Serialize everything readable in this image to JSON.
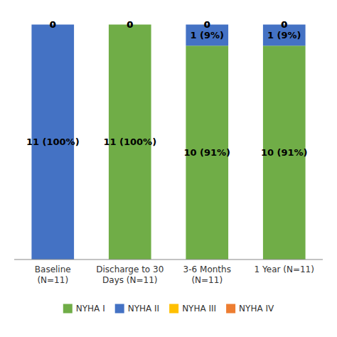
{
  "chart_data": {
    "type": "bar",
    "stacked": true,
    "categories": [
      "Baseline\n(N=11)",
      "Discharge to 30\nDays (N=11)",
      "3-6 Months\n(N=11)",
      "1 Year (N=11)"
    ],
    "series": [
      {
        "name": "NYHA I",
        "color": "#70AD47",
        "values": [
          0,
          100,
          91,
          91
        ],
        "value_labels": [
          null,
          "11 (100%)",
          "10 (91%)",
          "10 (91%)"
        ]
      },
      {
        "name": "NYHA II",
        "color": "#4472C4",
        "values": [
          100,
          0,
          9,
          9
        ],
        "value_labels": [
          "11 (100%)",
          null,
          "1 (9%)",
          "1 (9%)"
        ]
      },
      {
        "name": "NYHA III",
        "color": "#FFC000",
        "values": [
          0,
          0,
          0,
          0
        ]
      },
      {
        "name": "NYHA IV",
        "color": "#ED7D31",
        "values": [
          0,
          0,
          0,
          0
        ]
      }
    ],
    "ylim": [
      0,
      105
    ],
    "data_labels": true,
    "tick_labels": "x",
    "grid": false,
    "legend": "bottom"
  }
}
